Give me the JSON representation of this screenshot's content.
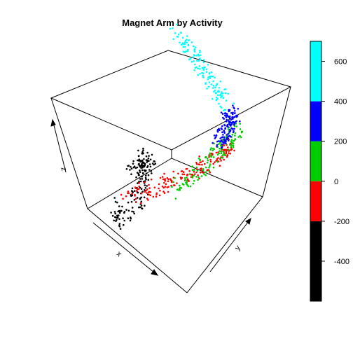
{
  "chart_data": {
    "type": "scatter",
    "title": "Magnet Arm by Activity",
    "axis_labels": {
      "x": "x",
      "y": "y",
      "z": "z"
    },
    "colorkey": {
      "placement": "right",
      "ticks": [
        -400,
        -200,
        0,
        200,
        400,
        600
      ],
      "tick_labels": [
        "-400",
        "-200",
        "0",
        "200",
        "400",
        "600"
      ],
      "bands": [
        {
          "from": -600,
          "to": -200,
          "color": "#000000"
        },
        {
          "from": -200,
          "to": 0,
          "color": "#ff0000"
        },
        {
          "from": 0,
          "to": 200,
          "color": "#00cd00"
        },
        {
          "from": 200,
          "to": 400,
          "color": "#0000ff"
        },
        {
          "from": 400,
          "to": 700,
          "color": "#00ffff"
        }
      ]
    },
    "series": [
      {
        "color": "#000000",
        "x": [
          -40,
          -25,
          -20,
          -28,
          -32,
          -34,
          -35,
          -33
        ],
        "y": [
          -40,
          -55,
          -30,
          -20,
          -5,
          0,
          -20,
          -10
        ],
        "z": [
          -600,
          -520,
          -470,
          -450,
          -400,
          -350,
          -300,
          -260
        ]
      },
      {
        "color": "#ff0000",
        "x": [
          -20,
          -5,
          5,
          15,
          22,
          30,
          34,
          37
        ],
        "y": [
          -50,
          -35,
          -20,
          -5,
          10,
          25,
          35,
          40
        ],
        "z": [
          -200,
          -180,
          -150,
          -120,
          -90,
          -60,
          -30,
          -5
        ]
      },
      {
        "color": "#00cd00",
        "x": [
          20,
          28,
          34,
          38,
          40,
          42
        ],
        "y": [
          -30,
          -10,
          10,
          25,
          35,
          45
        ],
        "z": [
          0,
          40,
          80,
          120,
          160,
          200
        ]
      },
      {
        "color": "#0000ff",
        "x": [
          35,
          38,
          40,
          40,
          38,
          35
        ],
        "y": [
          20,
          25,
          30,
          35,
          38,
          40
        ],
        "z": [
          220,
          260,
          300,
          340,
          380,
          410
        ]
      },
      {
        "color": "#00ffff",
        "x": [
          30,
          20,
          8,
          -5,
          -20,
          -38
        ],
        "y": [
          40,
          42,
          44,
          45,
          46,
          48
        ],
        "z": [
          430,
          480,
          530,
          580,
          620,
          660
        ]
      }
    ]
  }
}
